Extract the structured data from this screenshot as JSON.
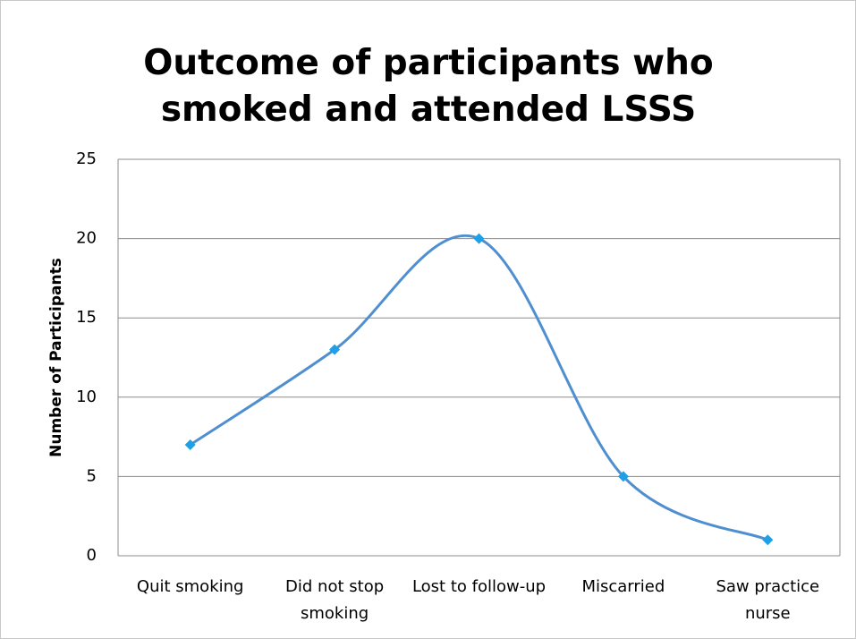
{
  "chart_data": {
    "type": "line",
    "title": "Outcome of participants who smoked and attended LSSS",
    "y_label": "Number of Participants",
    "categories": [
      "Quit smoking",
      "Did not stop smoking",
      "Lost to follow-up",
      "Miscarried",
      "Saw practice nurse"
    ],
    "values": [
      7,
      13,
      20,
      5,
      1
    ],
    "color": "#4f8fd0",
    "marker_color": "#1ea0e6",
    "smooth": true,
    "ylim": [
      0,
      25
    ],
    "yticks": [
      0,
      5,
      10,
      15,
      20,
      25
    ],
    "grid": true
  }
}
